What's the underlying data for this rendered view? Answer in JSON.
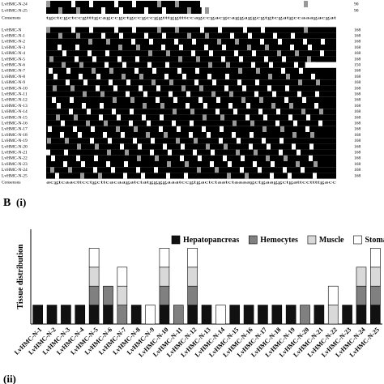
{
  "alignment_top": {
    "rows": [
      {
        "name": "LvHMC-N-24",
        "length": 90
      },
      {
        "name": "LvHMC-N-25",
        "length": 90
      }
    ],
    "consensus_label": "Consensus",
    "consensus": "tgctcgctccgtttgcagccgctgccgccggtttggtttccagccgacgcaggaggcgtgtcgatgccaaagacgat"
  },
  "alignment": {
    "rows": [
      {
        "name": "LvHMC-N",
        "length": 168
      },
      {
        "name": "LvHMC-N-1",
        "length": 168
      },
      {
        "name": "LvHMC-N-2",
        "length": 168
      },
      {
        "name": "LvHMC-N-3",
        "length": 168
      },
      {
        "name": "LvHMC-N-4",
        "length": 168
      },
      {
        "name": "LvHMC-N-5",
        "length": 168
      },
      {
        "name": "LvHMC-N-6",
        "length": 150
      },
      {
        "name": "LvHMC-N-7",
        "length": 168
      },
      {
        "name": "LvHMC-N-8",
        "length": 168
      },
      {
        "name": "LvHMC-N-9",
        "length": 168
      },
      {
        "name": "LvHMC-N-10",
        "length": 168
      },
      {
        "name": "LvHMC-N-11",
        "length": 168
      },
      {
        "name": "LvHMC-N-12",
        "length": 168
      },
      {
        "name": "LvHMC-N-13",
        "length": 168
      },
      {
        "name": "LvHMC-N-14",
        "length": 168
      },
      {
        "name": "LvHMC-N-15",
        "length": 168
      },
      {
        "name": "LvHMC-N-16",
        "length": 168
      },
      {
        "name": "LvHMC-N-17",
        "length": 168
      },
      {
        "name": "LvHMC-N-18",
        "length": 168
      },
      {
        "name": "LvHMC-N-19",
        "length": 168
      },
      {
        "name": "LvHMC-N-20",
        "length": 168
      },
      {
        "name": "LvHMC-N-21",
        "length": 168
      },
      {
        "name": "LvHMC-N-22",
        "length": 168
      },
      {
        "name": "LvHMC-N-23",
        "length": 168
      },
      {
        "name": "LvHMC-N-24",
        "length": 168
      },
      {
        "name": "LvHMC-N-25",
        "length": 168
      }
    ],
    "consensus_label": "Consensus",
    "consensus": "acgtcaacttcctgcttcacaagatctatggggaaatccgtgactctaatctaaaagctgaaggctgattccttttgacc"
  },
  "panel_label": "B",
  "subpanel_labels": [
    "(i)",
    "(ii)"
  ],
  "chart_data": {
    "type": "stacked_bar",
    "ylabel": "Tissue distribution",
    "legend": "upper right",
    "categories": [
      "LvHMC-N-1",
      "LvHMC-N-2",
      "LvHMC-N-3",
      "LvHMC-N-4",
      "LvHMC-N-5",
      "LvHMC-N-6",
      "LvHMC-N-7",
      "LvHMC-N-8",
      "LvHMC-N-9",
      "LvHMC-N-10",
      "LvHMC-N-11",
      "LvHMC-N-12",
      "LvHMC-N-13",
      "LvHMC-N-14",
      "LvHMC-N-15",
      "LvHMC-N-16",
      "LvHMC-N-17",
      "LvHMC-N-18",
      "LvHMC-N-19",
      "LvHMC-N-20",
      "LvHMC-N-21",
      "LvHMC-N-22",
      "LvHMC-N-23",
      "LvHMC-N-24",
      "LvHMC-N-25"
    ],
    "series": [
      {
        "name": "Hepatopancreas",
        "color": "#111111",
        "values": [
          1,
          1,
          1,
          1,
          1,
          1,
          0,
          1,
          0,
          1,
          0,
          1,
          1,
          0,
          1,
          1,
          1,
          1,
          1,
          0,
          1,
          0,
          1,
          1,
          1
        ]
      },
      {
        "name": "Hemocytes",
        "color": "#808080",
        "values": [
          0,
          0,
          0,
          0,
          1,
          1,
          1,
          0,
          0,
          1,
          1,
          1,
          0,
          0,
          0,
          0,
          0,
          0,
          0,
          1,
          0,
          0,
          0,
          1,
          1
        ]
      },
      {
        "name": "Muscle",
        "color": "#d9d9d9",
        "values": [
          0,
          0,
          0,
          0,
          1,
          0,
          1,
          0,
          0,
          1,
          0,
          1,
          0,
          0,
          0,
          0,
          0,
          0,
          0,
          0,
          0,
          1,
          0,
          1,
          1
        ]
      },
      {
        "name": "Stomach",
        "color": "#ffffff",
        "values": [
          0,
          0,
          0,
          0,
          1,
          0,
          1,
          0,
          1,
          1,
          0,
          1,
          0,
          1,
          0,
          0,
          0,
          0,
          0,
          0,
          0,
          1,
          0,
          0,
          1
        ]
      }
    ],
    "ylim": [
      0,
      5
    ]
  }
}
